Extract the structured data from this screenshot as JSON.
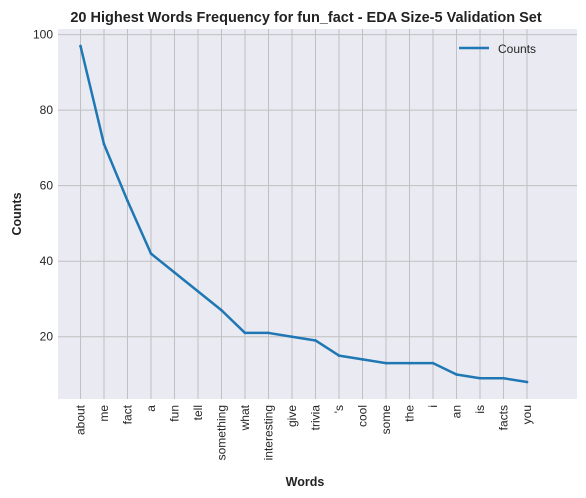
{
  "chart_data": {
    "type": "line",
    "title": "20 Highest Words Frequency for fun_fact - EDA Size-5 Validation Set",
    "xlabel": "Words",
    "ylabel": "Counts",
    "categories": [
      "about",
      "me",
      "fact",
      "a",
      "fun",
      "tell",
      "something",
      "what",
      "interesting",
      "give",
      "trivia",
      "'s",
      "cool",
      "some",
      "the",
      "i",
      "an",
      "is",
      "facts",
      "you"
    ],
    "series": [
      {
        "name": "Counts",
        "values": [
          97,
          71,
          56,
          42,
          37,
          32,
          27,
          21,
          21,
          20,
          19,
          15,
          14,
          13,
          13,
          13,
          10,
          9,
          9,
          8
        ],
        "color": "#1f77b4"
      }
    ],
    "ylim": [
      3.5,
      101.5
    ],
    "yticks": [
      20,
      40,
      60,
      80,
      100
    ],
    "grid": true,
    "legend": "top-right",
    "plot_background": "#eaeaf2",
    "grid_color": "#c0c0c0"
  }
}
